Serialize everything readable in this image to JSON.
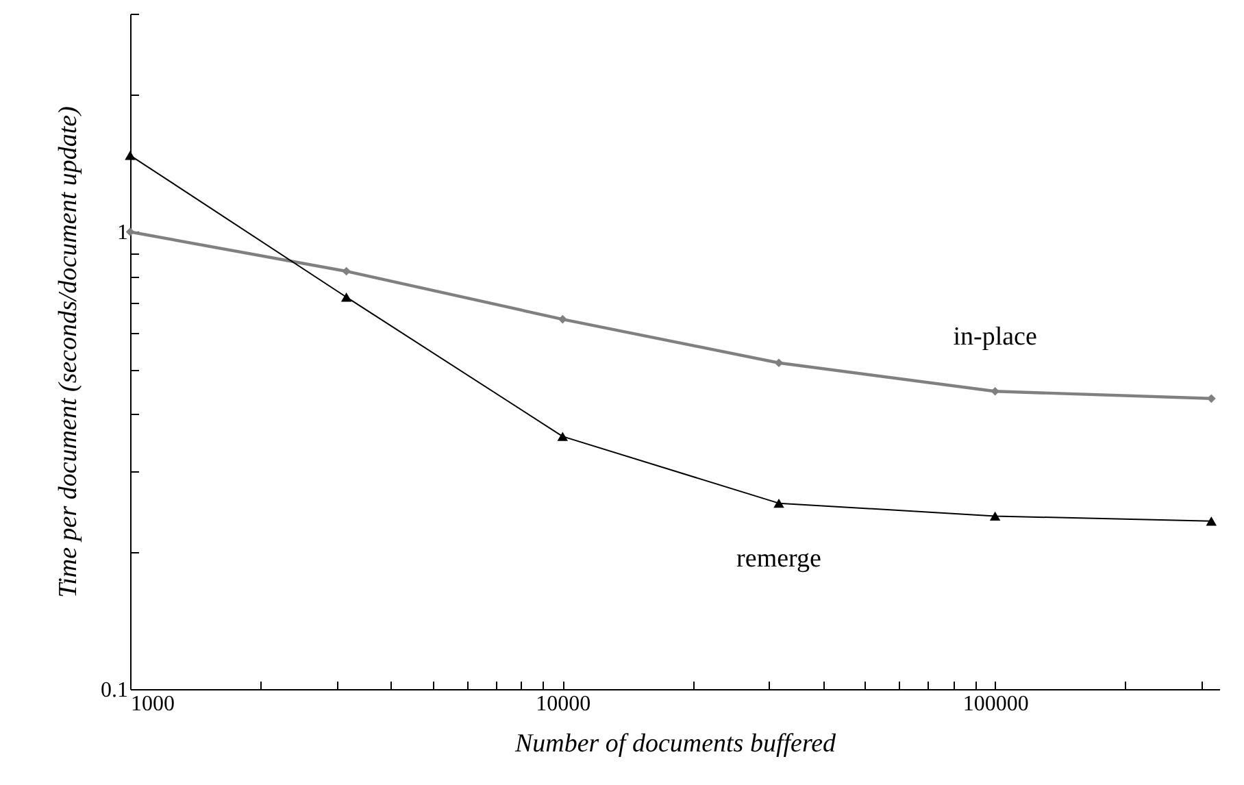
{
  "chart_data": {
    "type": "line",
    "xlabel": "Number of documents buffered",
    "ylabel": "Time per document (seconds/document update)",
    "x": [
      1000,
      3162,
      10000,
      31623,
      100000,
      316228
    ],
    "series": [
      {
        "name": "in-place",
        "color": "#808080",
        "marker": "diamond",
        "values": [
          1.0,
          0.82,
          0.644,
          0.517,
          0.448,
          0.432
        ]
      },
      {
        "name": "remerge",
        "color": "#000000",
        "marker": "triangle",
        "values": [
          1.47,
          0.72,
          0.357,
          0.255,
          0.239,
          0.233
        ]
      }
    ],
    "log": "xy",
    "grid": false,
    "xlim": [
      1000,
      330000
    ],
    "ylim": [
      0.1,
      3
    ],
    "xticks": [
      1000,
      {
        "value": 2000,
        "label": null
      },
      {
        "value": 3000,
        "label": null
      },
      {
        "value": 4000,
        "label": null
      },
      {
        "value": 5000,
        "label": null
      },
      {
        "value": 6000,
        "label": null
      },
      {
        "value": 7000,
        "label": null
      },
      {
        "value": 8000,
        "label": null
      },
      {
        "value": 9000,
        "label": null
      },
      10000,
      {
        "value": 20000,
        "label": null
      },
      {
        "value": 30000,
        "label": null
      },
      {
        "value": 40000,
        "label": null
      },
      {
        "value": 50000,
        "label": null
      },
      {
        "value": 60000,
        "label": null
      },
      {
        "value": 70000,
        "label": null
      },
      {
        "value": 80000,
        "label": null
      },
      {
        "value": 90000,
        "label": null
      },
      100000,
      {
        "value": 200000,
        "label": null
      },
      {
        "value": 300000,
        "label": null
      }
    ],
    "yticks": [
      0.1,
      {
        "value": 0.2,
        "label": null
      },
      {
        "value": 0.3,
        "label": null
      },
      {
        "value": 0.4,
        "label": null
      },
      {
        "value": 0.5,
        "label": null
      },
      {
        "value": 0.6,
        "label": null
      },
      {
        "value": 0.7,
        "label": null
      },
      {
        "value": 0.8,
        "label": null
      },
      {
        "value": 0.9,
        "label": null
      },
      1,
      {
        "value": 2,
        "label": null
      },
      {
        "value": 3,
        "label": null
      }
    ]
  }
}
